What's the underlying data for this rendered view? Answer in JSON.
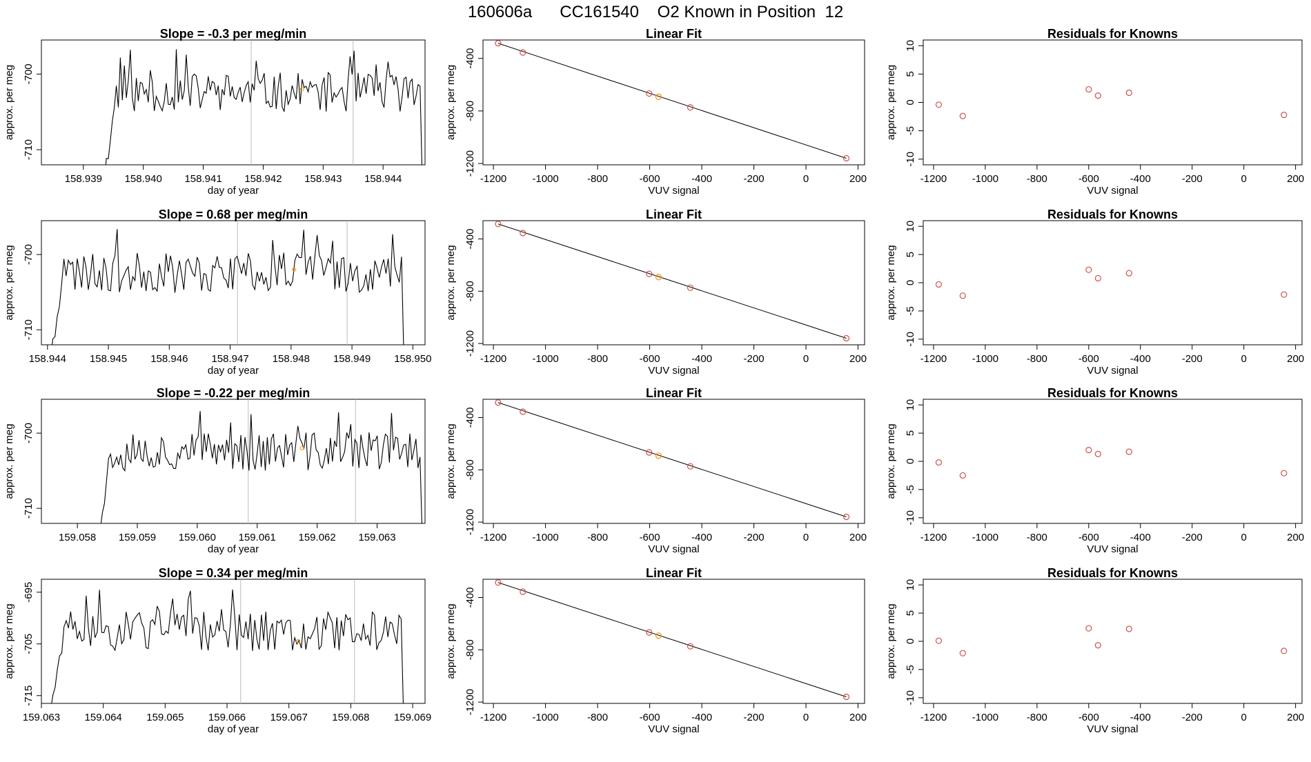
{
  "page": {
    "title": "160606a      CC161540    O2 Known in Position  12"
  },
  "colors": {
    "axis": "#000000",
    "trace": "#000000",
    "guide": "#bbbbbb",
    "known_point": "#d0504a",
    "highlight_point": "#f0a020",
    "fit_line": "#000000"
  },
  "chart_data": [
    {
      "type": "line",
      "panel": "timeseries",
      "row": 0,
      "title": "Slope =  -0.3  per meg/min",
      "xlabel": "day of year",
      "ylabel": "approx. per meg",
      "xlim": [
        158.9383,
        158.9447
      ],
      "ylim": [
        -712,
        -695.5
      ],
      "xticks": [
        158.939,
        158.94,
        158.941,
        158.942,
        158.943,
        158.944
      ],
      "xticklabels": [
        "158.939",
        "158.940",
        "158.941",
        "158.942",
        "158.943",
        "158.944"
      ],
      "yticks": [
        -710,
        -700
      ],
      "yticklabels": [
        "-710",
        "-700"
      ],
      "guides": [
        158.9418,
        158.9435
      ],
      "series_start": 158.93935,
      "series_end": 158.94465,
      "highlight_point": {
        "x": 158.94265,
        "y": -702
      },
      "seed": 11
    },
    {
      "type": "line",
      "panel": "linear_fit",
      "row": 0,
      "title": "Linear Fit",
      "xlabel": "VUV signal",
      "ylabel": "approx. per meg",
      "xlim": [
        -1240,
        225
      ],
      "ylim": [
        -1210,
        -260
      ],
      "xticks": [
        -1200,
        -1000,
        -800,
        -600,
        -400,
        -200,
        0,
        200
      ],
      "xticklabels": [
        "-1200",
        "-1000",
        "-800",
        "-600",
        "-400",
        "-200",
        "0",
        "200"
      ],
      "yticks": [
        -1200,
        -800,
        -400
      ],
      "yticklabels": [
        "-1200",
        "-800",
        "-400"
      ],
      "fit_line": {
        "x": [
          -1182,
          155
        ],
        "y": [
          -285,
          -1160
        ]
      },
      "known_points": {
        "x": [
          -1182,
          -1087,
          -602,
          -444,
          155
        ],
        "y": [
          -285,
          -355,
          -667,
          -773,
          -1160
        ]
      },
      "highlight_point": {
        "x": -566,
        "y": -692
      }
    },
    {
      "type": "scatter",
      "panel": "residuals",
      "row": 0,
      "title": "Residuals for Knowns",
      "xlabel": "VUV signal",
      "ylabel": "approx. per meg",
      "xlim": [
        -1240,
        225
      ],
      "ylim": [
        -11,
        11
      ],
      "xticks": [
        -1200,
        -1000,
        -800,
        -600,
        -400,
        -200,
        0,
        200
      ],
      "xticklabels": [
        "-1200",
        "-1000",
        "-800",
        "-600",
        "-400",
        "-200",
        "0",
        "200"
      ],
      "yticks": [
        -10,
        -5,
        0,
        5,
        10
      ],
      "yticklabels": [
        "-10",
        "-5",
        "0",
        "5",
        "10"
      ],
      "points": {
        "x": [
          -1180,
          -1087,
          -600,
          -564,
          -444,
          155
        ],
        "y": [
          -0.4,
          -2.4,
          2.3,
          1.2,
          1.7,
          -2.2
        ]
      }
    },
    {
      "type": "line",
      "panel": "timeseries",
      "row": 1,
      "title": "Slope =  0.68  per meg/min",
      "xlabel": "day of year",
      "ylabel": "approx. per meg",
      "xlim": [
        158.9439,
        158.9502
      ],
      "ylim": [
        -712,
        -695.5
      ],
      "xticks": [
        158.944,
        158.945,
        158.946,
        158.947,
        158.948,
        158.949,
        158.95
      ],
      "xticklabels": [
        "158.944",
        "158.945",
        "158.946",
        "158.947",
        "158.948",
        "158.949",
        "158.950"
      ],
      "yticks": [
        -710,
        -700
      ],
      "yticklabels": [
        "-710",
        "-700"
      ],
      "guides": [
        158.94712,
        158.94892
      ],
      "series_start": 158.94405,
      "series_end": 158.94985,
      "highlight_point": {
        "x": 158.94805,
        "y": -702
      },
      "seed": 23
    },
    {
      "type": "line",
      "panel": "linear_fit",
      "row": 1,
      "title": "Linear Fit",
      "xlabel": "VUV signal",
      "ylabel": "approx. per meg",
      "xlim": [
        -1240,
        225
      ],
      "ylim": [
        -1210,
        -260
      ],
      "xticks": [
        -1200,
        -1000,
        -800,
        -600,
        -400,
        -200,
        0,
        200
      ],
      "xticklabels": [
        "-1200",
        "-1000",
        "-800",
        "-600",
        "-400",
        "-200",
        "0",
        "200"
      ],
      "yticks": [
        -1200,
        -800,
        -400
      ],
      "yticklabels": [
        "-1200",
        "-800",
        "-400"
      ],
      "fit_line": {
        "x": [
          -1182,
          155
        ],
        "y": [
          -285,
          -1160
        ]
      },
      "known_points": {
        "x": [
          -1182,
          -1087,
          -602,
          -444,
          155
        ],
        "y": [
          -285,
          -355,
          -667,
          -773,
          -1160
        ]
      },
      "highlight_point": {
        "x": -566,
        "y": -692
      }
    },
    {
      "type": "scatter",
      "panel": "residuals",
      "row": 1,
      "title": "Residuals for Knowns",
      "xlabel": "VUV signal",
      "ylabel": "approx. per meg",
      "xlim": [
        -1240,
        225
      ],
      "ylim": [
        -11,
        11
      ],
      "xticks": [
        -1200,
        -1000,
        -800,
        -600,
        -400,
        -200,
        0,
        200
      ],
      "xticklabels": [
        "-1200",
        "-1000",
        "-800",
        "-600",
        "-400",
        "-200",
        "0",
        "200"
      ],
      "yticks": [
        -10,
        -5,
        0,
        5,
        10
      ],
      "yticklabels": [
        "-10",
        "-5",
        "0",
        "5",
        "10"
      ],
      "points": {
        "x": [
          -1180,
          -1087,
          -600,
          -564,
          -444,
          155
        ],
        "y": [
          -0.3,
          -2.3,
          2.3,
          0.8,
          1.7,
          -2.1
        ]
      }
    },
    {
      "type": "line",
      "panel": "timeseries",
      "row": 2,
      "title": "Slope =  -0.22  per meg/min",
      "xlabel": "day of year",
      "ylabel": "approx. per meg",
      "xlim": [
        159.0574,
        159.0638
      ],
      "ylim": [
        -712,
        -695.5
      ],
      "xticks": [
        159.058,
        159.059,
        159.06,
        159.061,
        159.062,
        159.063
      ],
      "xticklabels": [
        "159.058",
        "159.059",
        "159.060",
        "159.061",
        "159.062",
        "159.063"
      ],
      "yticks": [
        -710,
        -700
      ],
      "yticklabels": [
        "-710",
        "-700"
      ],
      "guides": [
        159.06085,
        159.06264
      ],
      "series_start": 159.05835,
      "series_end": 159.06375,
      "highlight_point": {
        "x": 159.06175,
        "y": -702
      },
      "seed": 37
    },
    {
      "type": "line",
      "panel": "linear_fit",
      "row": 2,
      "title": "Linear Fit",
      "xlabel": "VUV signal",
      "ylabel": "approx. per meg",
      "xlim": [
        -1240,
        225
      ],
      "ylim": [
        -1210,
        -260
      ],
      "xticks": [
        -1200,
        -1000,
        -800,
        -600,
        -400,
        -200,
        0,
        200
      ],
      "xticklabels": [
        "-1200",
        "-1000",
        "-800",
        "-600",
        "-400",
        "-200",
        "0",
        "200"
      ],
      "yticks": [
        -1200,
        -800,
        -400
      ],
      "yticklabels": [
        "-1200",
        "-800",
        "-400"
      ],
      "fit_line": {
        "x": [
          -1182,
          155
        ],
        "y": [
          -285,
          -1160
        ]
      },
      "known_points": {
        "x": [
          -1182,
          -1087,
          -602,
          -444,
          155
        ],
        "y": [
          -285,
          -355,
          -667,
          -773,
          -1160
        ]
      },
      "highlight_point": {
        "x": -566,
        "y": -692
      }
    },
    {
      "type": "scatter",
      "panel": "residuals",
      "row": 2,
      "title": "Residuals for Knowns",
      "xlabel": "VUV signal",
      "ylabel": "approx. per meg",
      "xlim": [
        -1240,
        225
      ],
      "ylim": [
        -11,
        11
      ],
      "xticks": [
        -1200,
        -1000,
        -800,
        -600,
        -400,
        -200,
        0,
        200
      ],
      "xticklabels": [
        "-1200",
        "-1000",
        "-800",
        "-600",
        "-400",
        "-200",
        "0",
        "200"
      ],
      "yticks": [
        -10,
        -5,
        0,
        5,
        10
      ],
      "yticklabels": [
        "-10",
        "-5",
        "0",
        "5",
        "10"
      ],
      "points": {
        "x": [
          -1180,
          -1087,
          -600,
          -564,
          -444,
          155
        ],
        "y": [
          -0.2,
          -2.5,
          2.0,
          1.3,
          1.7,
          -2.1
        ]
      }
    },
    {
      "type": "line",
      "panel": "timeseries",
      "row": 3,
      "title": "Slope =  0.34  per meg/min",
      "xlabel": "day of year",
      "ylabel": "approx. per meg",
      "xlim": [
        159.063,
        159.0692
      ],
      "ylim": [
        -716.5,
        -692.5
      ],
      "xticks": [
        159.063,
        159.064,
        159.065,
        159.066,
        159.067,
        159.068,
        159.069
      ],
      "xticklabels": [
        "159.063",
        "159.064",
        "159.065",
        "159.066",
        "159.067",
        "159.068",
        "159.069"
      ],
      "yticks": [
        -715,
        -705,
        -695
      ],
      "yticklabels": [
        "-715",
        "-705",
        "-695"
      ],
      "guides": [
        159.06622,
        159.06806
      ],
      "series_start": 159.06315,
      "series_end": 159.06885,
      "highlight_point": {
        "x": 159.06715,
        "y": -704.5
      },
      "seed": 51
    },
    {
      "type": "line",
      "panel": "linear_fit",
      "row": 3,
      "title": "Linear Fit",
      "xlabel": "VUV signal",
      "ylabel": "approx. per meg",
      "xlim": [
        -1240,
        225
      ],
      "ylim": [
        -1210,
        -260
      ],
      "xticks": [
        -1200,
        -1000,
        -800,
        -600,
        -400,
        -200,
        0,
        200
      ],
      "xticklabels": [
        "-1200",
        "-1000",
        "-800",
        "-600",
        "-400",
        "-200",
        "0",
        "200"
      ],
      "yticks": [
        -1200,
        -800,
        -400
      ],
      "yticklabels": [
        "-1200",
        "-800",
        "-400"
      ],
      "fit_line": {
        "x": [
          -1182,
          155
        ],
        "y": [
          -285,
          -1160
        ]
      },
      "known_points": {
        "x": [
          -1182,
          -1087,
          -602,
          -444,
          155
        ],
        "y": [
          -285,
          -355,
          -667,
          -773,
          -1160
        ]
      },
      "highlight_point": {
        "x": -566,
        "y": -692
      }
    },
    {
      "type": "scatter",
      "panel": "residuals",
      "row": 3,
      "title": "Residuals for Knowns",
      "xlabel": "VUV signal",
      "ylabel": "approx. per meg",
      "xlim": [
        -1240,
        225
      ],
      "ylim": [
        -11,
        11
      ],
      "xticks": [
        -1200,
        -1000,
        -800,
        -600,
        -400,
        -200,
        0,
        200
      ],
      "xticklabels": [
        "-1200",
        "-1000",
        "-800",
        "-600",
        "-400",
        "-200",
        "0",
        "200"
      ],
      "yticks": [
        -10,
        -5,
        0,
        5,
        10
      ],
      "yticklabels": [
        "-10",
        "-5",
        "0",
        "5",
        "10"
      ],
      "points": {
        "x": [
          -1180,
          -1087,
          -600,
          -564,
          -444,
          155
        ],
        "y": [
          0.1,
          -2.1,
          2.3,
          -0.7,
          2.2,
          -1.7
        ]
      }
    }
  ]
}
